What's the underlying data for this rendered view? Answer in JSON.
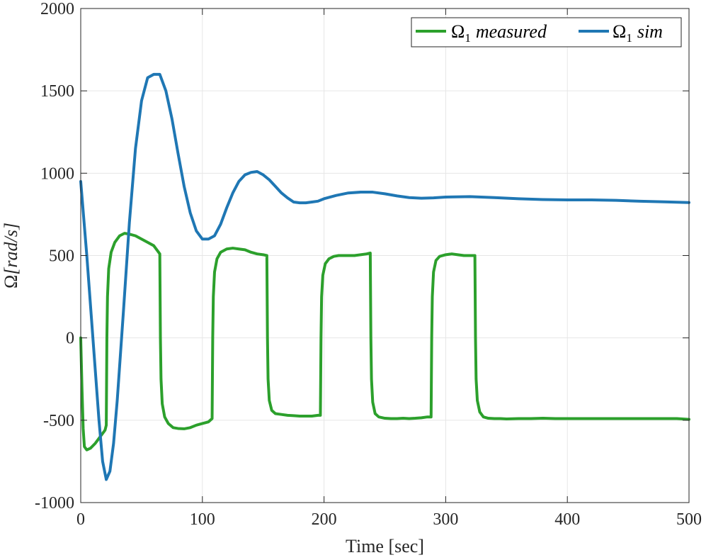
{
  "chart_data": {
    "type": "line",
    "title": "",
    "xlabel": "Time [sec]",
    "ylabel": "Ω[rad/s]",
    "ylabel_parts": {
      "symbol": "Ω",
      "unit": "[rad/s]"
    },
    "xlim": [
      0,
      500
    ],
    "ylim": [
      -1000,
      2000
    ],
    "xticks": [
      0,
      100,
      200,
      300,
      400,
      500
    ],
    "yticks": [
      -1000,
      -500,
      0,
      500,
      1000,
      1500,
      2000
    ],
    "xtick_labels": [
      "0",
      "100",
      "200",
      "300",
      "400",
      "500"
    ],
    "ytick_labels": [
      "-1000",
      "-500",
      "0",
      "500",
      "1000",
      "1500",
      "2000"
    ],
    "grid": true,
    "legend_position": "top-right",
    "series": [
      {
        "name": "Ω1 measured",
        "legend": {
          "base": "Ω",
          "sub": "1",
          "rest": "measured"
        },
        "color": "#2ca02c",
        "x": [
          0,
          1,
          2,
          3,
          5,
          8,
          12,
          16,
          20,
          21,
          21.5,
          22,
          23,
          25,
          28,
          32,
          36,
          40,
          45,
          50,
          55,
          60,
          64,
          65,
          65.5,
          66,
          67,
          69,
          72,
          76,
          80,
          85,
          90,
          95,
          100,
          105,
          108,
          108.5,
          109,
          110,
          112,
          115,
          120,
          125,
          130,
          135,
          140,
          145,
          150,
          153,
          153.5,
          154,
          155,
          157,
          160,
          165,
          170,
          175,
          180,
          185,
          190,
          195,
          197,
          197.5,
          198,
          199,
          201,
          204,
          208,
          212,
          216,
          220,
          225,
          230,
          235,
          238,
          238.5,
          239,
          240,
          242,
          245,
          250,
          255,
          260,
          265,
          270,
          275,
          280,
          285,
          288,
          288.5,
          289,
          290,
          292,
          295,
          300,
          305,
          310,
          315,
          320,
          324,
          324.5,
          325,
          326,
          328,
          331,
          335,
          340,
          345,
          350,
          360,
          370,
          380,
          390,
          400,
          410,
          420,
          430,
          440,
          450,
          460,
          470,
          480,
          490,
          500
        ],
        "y": [
          0,
          -300,
          -550,
          -660,
          -680,
          -670,
          -640,
          -600,
          -560,
          -530,
          0,
          250,
          420,
          520,
          580,
          620,
          635,
          630,
          620,
          600,
          580,
          560,
          520,
          510,
          0,
          -250,
          -400,
          -480,
          -520,
          -545,
          -550,
          -552,
          -545,
          -530,
          -520,
          -510,
          -490,
          0,
          250,
          400,
          480,
          520,
          540,
          545,
          540,
          535,
          520,
          510,
          505,
          500,
          0,
          -250,
          -380,
          -440,
          -460,
          -465,
          -470,
          -472,
          -475,
          -475,
          -475,
          -470,
          -470,
          0,
          250,
          380,
          450,
          480,
          495,
          500,
          500,
          500,
          500,
          505,
          510,
          515,
          0,
          -250,
          -390,
          -460,
          -480,
          -488,
          -490,
          -490,
          -488,
          -490,
          -488,
          -485,
          -480,
          -480,
          0,
          250,
          400,
          470,
          495,
          505,
          510,
          505,
          500,
          500,
          500,
          0,
          -250,
          -380,
          -450,
          -480,
          -488,
          -490,
          -490,
          -492,
          -490,
          -490,
          -488,
          -490,
          -490,
          -490,
          -490,
          -490,
          -490,
          -490,
          -490,
          -490,
          -490,
          -490,
          -495
        ]
      },
      {
        "name": "Ω1 sim",
        "legend": {
          "base": "Ω",
          "sub": "1",
          "rest": "sim"
        },
        "color": "#1f77b4",
        "x": [
          0,
          5,
          10,
          15,
          18,
          21,
          24,
          27,
          30,
          35,
          40,
          45,
          50,
          55,
          60,
          65,
          70,
          75,
          80,
          85,
          90,
          95,
          100,
          105,
          110,
          115,
          120,
          125,
          130,
          135,
          140,
          145,
          150,
          155,
          160,
          165,
          170,
          175,
          180,
          185,
          190,
          195,
          200,
          210,
          220,
          230,
          240,
          250,
          260,
          270,
          280,
          290,
          300,
          320,
          340,
          360,
          380,
          400,
          420,
          440,
          460,
          480,
          500
        ],
        "y": [
          950,
          500,
          0,
          -500,
          -750,
          -860,
          -810,
          -640,
          -380,
          150,
          700,
          1150,
          1440,
          1580,
          1600,
          1600,
          1500,
          1330,
          1120,
          920,
          760,
          650,
          600,
          600,
          620,
          690,
          790,
          880,
          950,
          990,
          1005,
          1010,
          990,
          960,
          920,
          880,
          850,
          825,
          820,
          820,
          825,
          830,
          845,
          865,
          880,
          885,
          885,
          875,
          862,
          852,
          848,
          850,
          855,
          858,
          852,
          845,
          840,
          838,
          838,
          835,
          830,
          826,
          822
        ]
      }
    ]
  }
}
